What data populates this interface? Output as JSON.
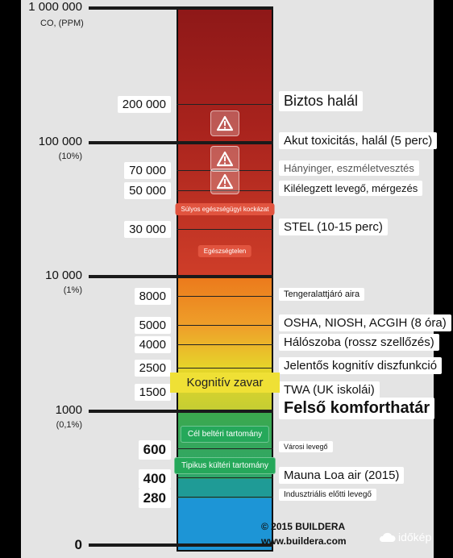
{
  "chart_data": {
    "type": "scale",
    "units_label": "CO, (PPM)",
    "colors": {
      "top": "#9a1d1a",
      "orange": "#ec7a1c",
      "yellow": "#e6d62a",
      "green": "#3ba84e",
      "teal": "#1f9b96",
      "blue": "#1d95d6",
      "danger_pill": "#e1543f",
      "cognitive_band": "#efe035",
      "green_pill": "#25a85a"
    },
    "levels": [
      {
        "value": 1000000,
        "label": "1 000 000",
        "major": true
      },
      {
        "value": 200000,
        "label": "200 000",
        "boxed": true,
        "desc": "Biztos halál",
        "desc_size": 18
      },
      {
        "value": 100000,
        "label": "100 000",
        "sub": "(10%)",
        "major": true,
        "desc": "Akut toxicitás, halál (5 perc)",
        "desc_size": 15
      },
      {
        "value": 70000,
        "label": "70 000",
        "boxed": true,
        "desc": "Hányinger, eszméletvesztés",
        "desc_size": 13,
        "desc_color": "#555"
      },
      {
        "value": 50000,
        "label": "50 000",
        "boxed": true,
        "desc": "Kilélegzett levegő, mérgezés",
        "desc_size": 13
      },
      {
        "value": 30000,
        "label": "30 000",
        "boxed": true,
        "desc": "STEL (10-15 perc)",
        "desc_size": 15
      },
      {
        "value": 10000,
        "label": "10 000",
        "sub": "(1%)",
        "major": true
      },
      {
        "value": 8000,
        "label": "8000",
        "boxed": true,
        "desc": "Tengeralattjáró aira",
        "desc_size": 11
      },
      {
        "value": 5000,
        "label": "5000",
        "boxed": true,
        "desc": "OSHA, NIOSH, ACGIH (8 óra)",
        "desc_size": 15
      },
      {
        "value": 4000,
        "label": "4000",
        "boxed": true,
        "desc": "Hálószoba (rossz szellőzés)",
        "desc_size": 15
      },
      {
        "value": 2500,
        "label": "2500",
        "boxed": true,
        "desc": "Jelentős kognitív diszfunkció",
        "desc_size": 15
      },
      {
        "value": 1500,
        "label": "1500",
        "boxed": true,
        "desc": "TWA (UK iskolái)",
        "desc_size": 15
      },
      {
        "value": 1000,
        "label": "1000",
        "sub": "(0,1%)",
        "major": true,
        "desc": "Felső komforthatár",
        "desc_size": 20,
        "desc_bold": true
      },
      {
        "value": 600,
        "label": "600",
        "boxed": true,
        "bold": true,
        "desc": "Városi levegő",
        "desc_size": 9
      },
      {
        "value": 400,
        "label": "400",
        "boxed": true,
        "bold": true,
        "desc": "Mauna Loa air (2015)",
        "desc_size": 15
      },
      {
        "value": 280,
        "label": "280",
        "boxed": true,
        "bold": true,
        "desc": "Indusztriális előtti levegő",
        "desc_size": 10
      },
      {
        "value": 0,
        "label": "0",
        "major": true,
        "bold": true
      }
    ],
    "zones": [
      {
        "label": "Súlyos egészségügyi kockázat",
        "style": "danger"
      },
      {
        "label": "Egészségtelen",
        "style": "danger"
      },
      {
        "label": "Kognitív zavar",
        "style": "band"
      },
      {
        "label": "Cél beltéri tartomány",
        "style": "green"
      },
      {
        "label": "Tipikus kültéri tartomány",
        "style": "green"
      }
    ],
    "warning_icons": [
      "warning-icon",
      "warning-icon",
      "warning-icon"
    ]
  },
  "credit": {
    "copyright": "© 2015 BUILDERA",
    "website": "www.buildera.com"
  },
  "watermark": {
    "text": "időkép",
    "icon": "cloud-icon"
  }
}
